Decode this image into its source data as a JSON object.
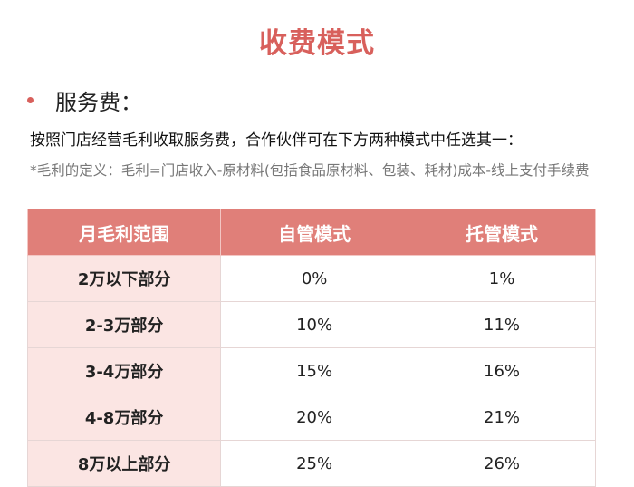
{
  "title": "收费模式",
  "section": {
    "label": "服务费："
  },
  "intro": "按照门店经营毛利收取服务费，合作伙伴可在下方两种模式中任选其一：",
  "note": "*毛利的定义：毛利=门店收入-原材料(包括食品原材料、包装、耗材)成本-线上支付手续费",
  "table": {
    "headers": [
      "月毛利范围",
      "自管模式",
      "托管模式"
    ],
    "rows": [
      [
        "2万以下部分",
        "0%",
        "1%"
      ],
      [
        "2-3万部分",
        "10%",
        "11%"
      ],
      [
        "3-4万部分",
        "15%",
        "16%"
      ],
      [
        "4-8万部分",
        "20%",
        "21%"
      ],
      [
        "8万以上部分",
        "25%",
        "26%"
      ]
    ]
  },
  "colors": {
    "accent": "#d8605c",
    "header_bg": "#e07f79",
    "range_bg": "#fbe5e3"
  }
}
